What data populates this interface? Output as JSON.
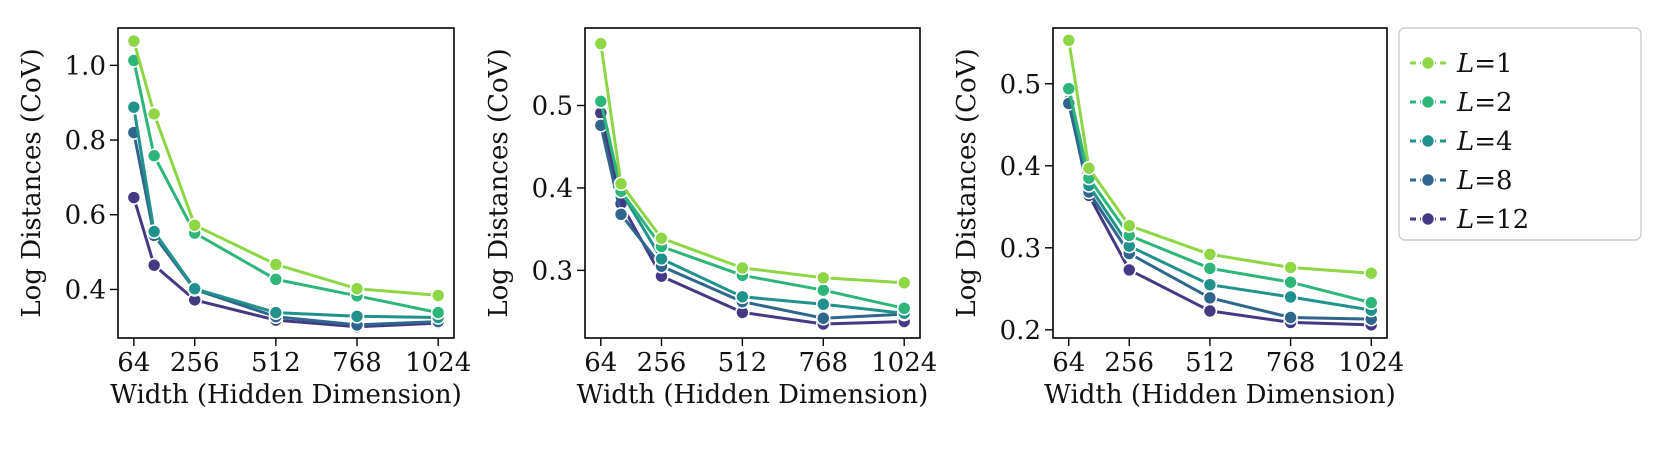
{
  "chart_data": [
    {
      "type": "line",
      "xlabel": "Width (Hidden Dimension)",
      "ylabel": "Log Distances (CoV)",
      "x": [
        64,
        128,
        256,
        512,
        768,
        1024
      ],
      "xticks": [
        64,
        256,
        512,
        768,
        1024
      ],
      "xlim": [
        14,
        1074
      ],
      "ylim": [
        0.27,
        1.1
      ],
      "yticks": [
        0.4,
        0.6,
        0.8,
        1.0
      ],
      "ytick_labels": [
        "0.4",
        "0.6",
        "0.8",
        "1.0"
      ],
      "series": [
        {
          "name": "L=1",
          "values": [
            1.065,
            0.87,
            0.572,
            0.467,
            0.402,
            0.384
          ]
        },
        {
          "name": "L=2",
          "values": [
            1.013,
            0.758,
            0.551,
            0.427,
            0.383,
            0.338
          ]
        },
        {
          "name": "L=4",
          "values": [
            0.888,
            0.555,
            0.402,
            0.338,
            0.328,
            0.325
          ]
        },
        {
          "name": "L=8",
          "values": [
            0.82,
            0.545,
            0.4,
            0.327,
            0.305,
            0.314
          ]
        },
        {
          "name": "L=12",
          "values": [
            0.646,
            0.465,
            0.372,
            0.318,
            0.3,
            0.31
          ]
        }
      ]
    },
    {
      "type": "line",
      "xlabel": "Width (Hidden Dimension)",
      "ylabel": "Log Distances (CoV)",
      "x": [
        64,
        128,
        256,
        512,
        768,
        1024
      ],
      "xticks": [
        64,
        256,
        512,
        768,
        1024
      ],
      "xlim": [
        14,
        1074
      ],
      "ylim": [
        0.218,
        0.594
      ],
      "yticks": [
        0.3,
        0.4,
        0.5
      ],
      "ytick_labels": [
        "0.3",
        "0.4",
        "0.5"
      ],
      "series": [
        {
          "name": "L=1",
          "values": [
            0.575,
            0.405,
            0.339,
            0.303,
            0.291,
            0.285
          ]
        },
        {
          "name": "L=2",
          "values": [
            0.505,
            0.396,
            0.329,
            0.294,
            0.276,
            0.254
          ]
        },
        {
          "name": "L=4",
          "values": [
            0.505,
            0.396,
            0.314,
            0.268,
            0.259,
            0.248
          ]
        },
        {
          "name": "L=8",
          "values": [
            0.476,
            0.368,
            0.305,
            0.262,
            0.242,
            0.247
          ]
        },
        {
          "name": "L=12",
          "values": [
            0.491,
            0.381,
            0.293,
            0.249,
            0.235,
            0.238
          ]
        }
      ]
    },
    {
      "type": "line",
      "xlabel": "Width (Hidden Dimension)",
      "ylabel": "Log Distances (CoV)",
      "x": [
        64,
        128,
        256,
        512,
        768,
        1024
      ],
      "xticks": [
        64,
        256,
        512,
        768,
        1024
      ],
      "xlim": [
        14,
        1074
      ],
      "ylim": [
        0.19,
        0.568
      ],
      "yticks": [
        0.2,
        0.3,
        0.4,
        0.5
      ],
      "ytick_labels": [
        "0.2",
        "0.3",
        "0.4",
        "0.5"
      ],
      "series": [
        {
          "name": "L=1",
          "values": [
            0.553,
            0.397,
            0.327,
            0.292,
            0.276,
            0.269
          ]
        },
        {
          "name": "L=2",
          "values": [
            0.494,
            0.385,
            0.315,
            0.275,
            0.258,
            0.233
          ]
        },
        {
          "name": "L=4",
          "values": [
            0.494,
            0.376,
            0.302,
            0.255,
            0.24,
            0.224
          ]
        },
        {
          "name": "L=8",
          "values": [
            0.476,
            0.368,
            0.293,
            0.239,
            0.215,
            0.213
          ]
        },
        {
          "name": "L=12",
          "values": [
            0.479,
            0.364,
            0.273,
            0.223,
            0.209,
            0.206
          ]
        }
      ]
    }
  ],
  "legend": {
    "entries": [
      {
        "italic": "L",
        "rest": "=1"
      },
      {
        "italic": "L",
        "rest": "=2"
      },
      {
        "italic": "L",
        "rest": "=4"
      },
      {
        "italic": "L",
        "rest": "=8"
      },
      {
        "italic": "L",
        "rest": "=12"
      }
    ]
  },
  "colors": [
    "#8ed645",
    "#2db57a",
    "#21918c",
    "#30668d",
    "#443a83"
  ]
}
